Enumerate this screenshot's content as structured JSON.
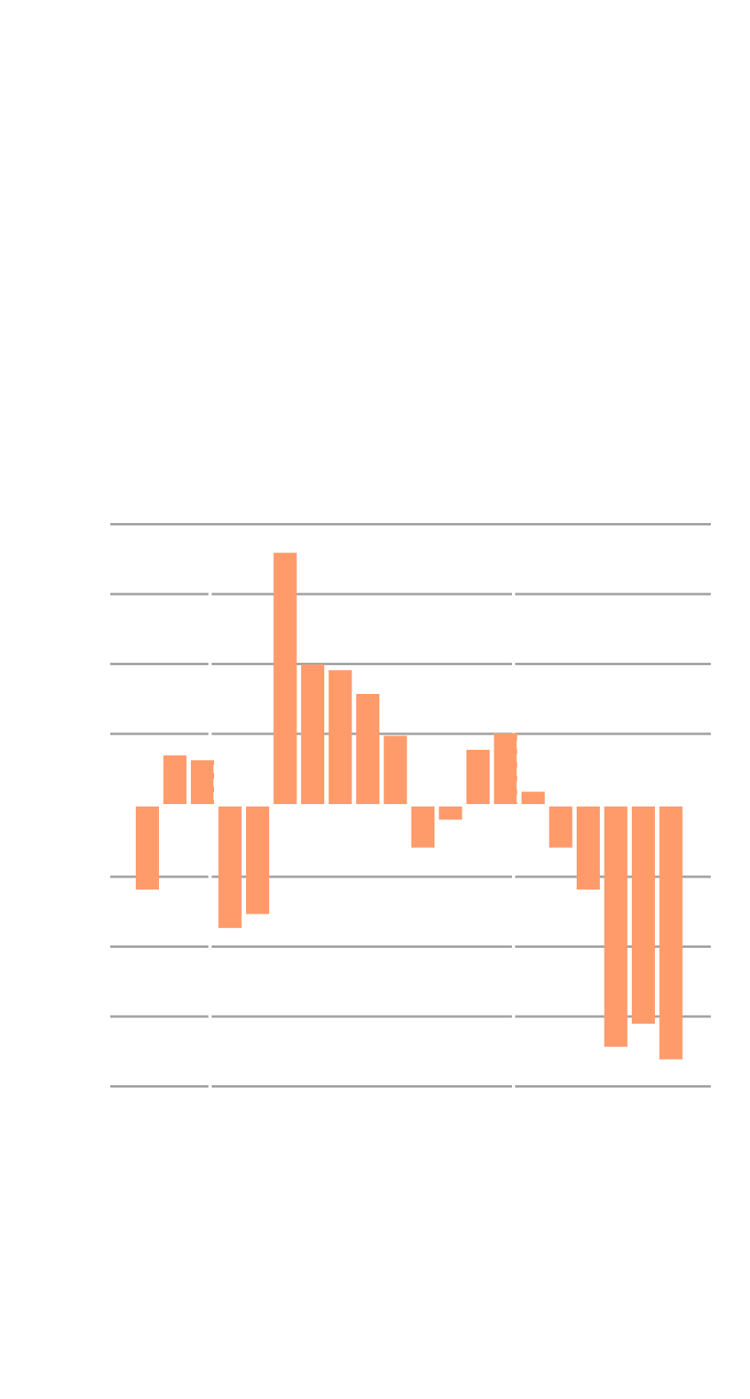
{
  "chart_data": {
    "type": "bar",
    "orientation": "vertical",
    "bar_color": "#ff9b6b",
    "gridline_color": "#a3a3a3",
    "grid": true,
    "legend": "none",
    "title": "",
    "xlabel": "",
    "ylabel": "",
    "ylim": [
      -4,
      4
    ],
    "gridline_values": [
      4,
      3,
      2,
      1,
      -1,
      -2,
      -3,
      -4
    ],
    "values": [
      -1.2,
      0.72,
      0.65,
      -1.75,
      -1.55,
      3.62,
      2.02,
      1.94,
      1.6,
      1.0,
      -0.6,
      -0.2,
      0.8,
      1.04,
      0.2,
      -0.6,
      -1.2,
      -3.45,
      -3.12,
      -3.63
    ],
    "markers": [
      {
        "between_bars": [
          2,
          3
        ],
        "y_range": [
          0,
          0.65
        ]
      },
      {
        "between_bars": [
          13,
          14
        ],
        "y_range": [
          0,
          1.0
        ]
      }
    ]
  }
}
